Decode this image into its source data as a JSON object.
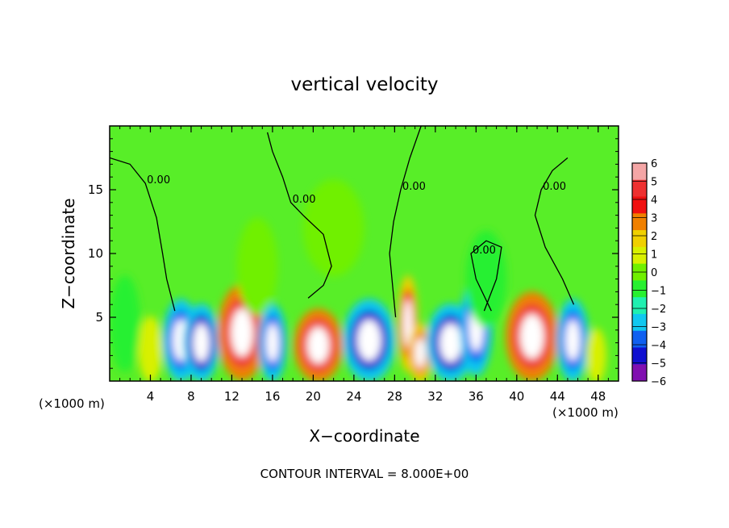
{
  "chart_data": {
    "type": "heatmap",
    "title": "vertical velocity",
    "xlabel": "X−coordinate",
    "ylabel": "Z−coordinate",
    "x_unit_left": "(×1000 m)",
    "x_unit_right": "(×1000 m)",
    "footer": "CONTOUR INTERVAL = 8.000E+00",
    "xlim": [
      0,
      50
    ],
    "ylim": [
      0,
      20
    ],
    "x_ticks": [
      4,
      8,
      12,
      16,
      20,
      24,
      28,
      32,
      36,
      40,
      44,
      48
    ],
    "y_ticks": [
      5,
      10,
      15
    ],
    "colorbar": {
      "min": -6,
      "max": 6,
      "labels": [
        "6",
        "5",
        "4",
        "3",
        "2",
        "1",
        "0",
        "−1",
        "−2",
        "−3",
        "−4",
        "−5",
        "−6"
      ],
      "colors": [
        "#f4a6a6",
        "#ee3030",
        "#f01010",
        "#f08000",
        "#f0d000",
        "#d8f000",
        "#70f000",
        "#28f030",
        "#20f0b0",
        "#10c8f0",
        "#1060f0",
        "#1010d0",
        "#8010b0"
      ]
    },
    "contour_label": "0.00",
    "cells": [
      {
        "x": 4.0,
        "z": 2.5,
        "w": 1.2,
        "v": 1.2
      },
      {
        "x": 7.0,
        "z": 3.2,
        "w": 1.8,
        "v": -5.0
      },
      {
        "x": 9.0,
        "z": 3.0,
        "w": 1.8,
        "v": -5.5
      },
      {
        "x": 13.0,
        "z": 3.8,
        "w": 2.4,
        "v": 5.8
      },
      {
        "x": 16.0,
        "z": 3.0,
        "w": 1.4,
        "v": -4.8
      },
      {
        "x": 20.5,
        "z": 2.8,
        "w": 2.4,
        "v": 6.0
      },
      {
        "x": 25.5,
        "z": 3.2,
        "w": 2.6,
        "v": -6.0
      },
      {
        "x": 29.3,
        "z": 4.5,
        "w": 1.0,
        "v": 4.5
      },
      {
        "x": 30.5,
        "z": 2.2,
        "w": 1.2,
        "v": 4.0
      },
      {
        "x": 33.5,
        "z": 3.0,
        "w": 2.4,
        "v": -5.5
      },
      {
        "x": 36.0,
        "z": 4.2,
        "w": 1.6,
        "v": -5.0
      },
      {
        "x": 41.5,
        "z": 3.5,
        "w": 2.6,
        "v": 6.0
      },
      {
        "x": 45.5,
        "z": 3.2,
        "w": 1.6,
        "v": -5.0
      },
      {
        "x": 47.8,
        "z": 2.0,
        "w": 1.0,
        "v": 2.5
      },
      {
        "x": 1.5,
        "z": 4.5,
        "w": 1.5,
        "v": -2.5
      },
      {
        "x": 37.0,
        "z": 8.0,
        "w": 2.0,
        "v": -1.5
      },
      {
        "x": 14.5,
        "z": 9.0,
        "w": 2.0,
        "v": 0.8
      },
      {
        "x": 22.0,
        "z": 12.0,
        "w": 3.0,
        "v": -0.6
      }
    ],
    "contours": [
      {
        "label": "0.00",
        "points": [
          [
            0,
            17.5
          ],
          [
            2,
            17
          ],
          [
            3.5,
            15.5
          ],
          [
            4.6,
            12.8
          ],
          [
            5.2,
            10.0
          ],
          [
            5.6,
            8.0
          ],
          [
            6.4,
            5.5
          ]
        ]
      },
      {
        "label": "0.00",
        "points": [
          [
            15.5,
            19.5
          ],
          [
            16.0,
            18.0
          ],
          [
            17.0,
            16.0
          ],
          [
            17.8,
            14.0
          ],
          [
            19.0,
            13.0
          ],
          [
            21.0,
            11.5
          ],
          [
            21.8,
            9.0
          ],
          [
            21.0,
            7.5
          ],
          [
            19.5,
            6.5
          ]
        ]
      },
      {
        "label": "0.00",
        "points": [
          [
            30.6,
            20
          ],
          [
            29.5,
            17.5
          ],
          [
            28.6,
            15
          ],
          [
            27.9,
            12.5
          ],
          [
            27.5,
            10.0
          ],
          [
            27.8,
            7.5
          ],
          [
            28.1,
            5.0
          ]
        ]
      },
      {
        "label": "0.00",
        "points": [
          [
            37.5,
            5.5
          ],
          [
            36.0,
            8.0
          ],
          [
            35.5,
            10.0
          ],
          [
            37.0,
            11.0
          ],
          [
            38.5,
            10.5
          ],
          [
            38.0,
            8.0
          ],
          [
            36.8,
            5.5
          ]
        ]
      },
      {
        "label": "0.00",
        "points": [
          [
            45.0,
            17.5
          ],
          [
            43.5,
            16.5
          ],
          [
            42.4,
            15.0
          ],
          [
            41.8,
            13.0
          ],
          [
            42.8,
            10.5
          ],
          [
            44.5,
            8.0
          ],
          [
            45.6,
            6.0
          ]
        ]
      }
    ]
  }
}
